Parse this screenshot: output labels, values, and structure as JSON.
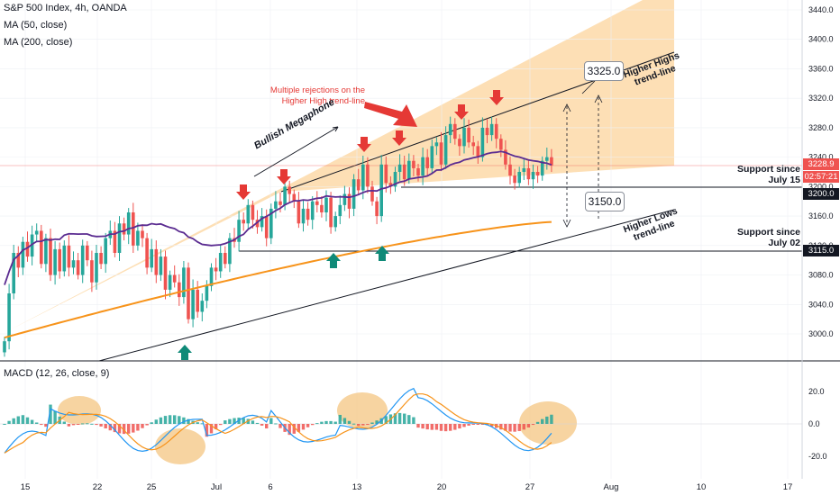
{
  "header": {
    "symbol_line": "S&P 500 Index, 4h, OANDA",
    "ma50": "MA (50, close)",
    "ma200": "MA (200, close)"
  },
  "macd_header": "MACD (12, 26, close, 9)",
  "colors": {
    "up": "#26a69a",
    "down": "#ef5350",
    "ma50": "#5b2c91",
    "ma200": "#f7931a",
    "channel": "#fdd9a8",
    "macd": "#2196f3",
    "signal": "#f7931a",
    "highlight": "#f5c98a",
    "arrow_up": "#0f8a78",
    "arrow_down": "#e53935",
    "price_tag": "#ef5350"
  },
  "annotations": {
    "rejections": [
      "Multiple rejections on the",
      "Higher High trend-line"
    ],
    "megaphone": "Bullish Megaphone",
    "higher_highs": [
      "Higher Highs",
      "trend-line"
    ],
    "higher_lows": [
      "Higher Lows",
      "trend-line"
    ],
    "support_jul15": [
      "Support since",
      "July 15"
    ],
    "support_jul02": [
      "Support since",
      "July 02"
    ],
    "target_high": "3325.0",
    "target_low": "3150.0"
  },
  "price_axis": {
    "ticks": [
      "3440.0",
      "3400.0",
      "3360.0",
      "3320.0",
      "3280.0",
      "3240.0",
      "3200.0",
      "3160.0",
      "3120.0",
      "3080.0",
      "3040.0",
      "3000.0"
    ],
    "last_price": "3228.9",
    "countdown": "02:57:21",
    "level_3200": "3200.0",
    "level_3115": "3115.0"
  },
  "macd_axis": {
    "ticks": [
      "20.0",
      "0.0",
      "-20.0"
    ]
  },
  "time_axis": {
    "labels": [
      "15",
      "22",
      "25",
      "Jul",
      "6",
      "13",
      "20",
      "27",
      "Aug",
      "10",
      "17"
    ]
  },
  "chart_data": {
    "type": "candlestick",
    "symbol": "S&P 500 Index",
    "timeframe": "4h",
    "x_range": [
      "Jun 15",
      "Aug 17"
    ],
    "y_range": [
      2985,
      3465
    ],
    "closes": [
      2990,
      3055,
      3110,
      3090,
      3125,
      3105,
      3135,
      3140,
      3095,
      3130,
      3080,
      3115,
      3085,
      3120,
      3090,
      3100,
      3080,
      3120,
      3100,
      3070,
      3110,
      3095,
      3130,
      3140,
      3110,
      3150,
      3135,
      3165,
      3120,
      3140,
      3130,
      3090,
      3115,
      3080,
      3105,
      3060,
      3080,
      3070,
      3050,
      3090,
      3020,
      3060,
      3030,
      3045,
      3065,
      3090,
      3085,
      3110,
      3095,
      3130,
      3125,
      3155,
      3150,
      3175,
      3155,
      3145,
      3160,
      3130,
      3170,
      3180,
      3175,
      3200,
      3190,
      3180,
      3150,
      3170,
      3155,
      3180,
      3175,
      3165,
      3185,
      3145,
      3160,
      3175,
      3190,
      3170,
      3210,
      3195,
      3230,
      3200,
      3180,
      3160,
      3230,
      3205,
      3200,
      3220,
      3230,
      3210,
      3235,
      3225,
      3215,
      3240,
      3225,
      3255,
      3260,
      3230,
      3270,
      3285,
      3265,
      3255,
      3280,
      3260,
      3255,
      3240,
      3280,
      3270,
      3285,
      3265,
      3250,
      3230,
      3215,
      3205,
      3220,
      3225,
      3210,
      3220,
      3215,
      3235,
      3240,
      3228.9
    ],
    "ma50_endpoints": [
      [
        0,
        3160
      ],
      [
        119,
        3232
      ]
    ],
    "ma200_endpoints": [
      [
        0,
        2995
      ],
      [
        119,
        3152
      ]
    ],
    "levels": [
      {
        "value": 3200,
        "label": "Support since July 15"
      },
      {
        "value": 3115,
        "label": "Support since July 02"
      }
    ],
    "targets": [
      3325.0,
      3150.0
    ],
    "macd": {
      "y_range": [
        -27,
        38
      ],
      "ticks": [
        20,
        0,
        -20
      ]
    }
  }
}
